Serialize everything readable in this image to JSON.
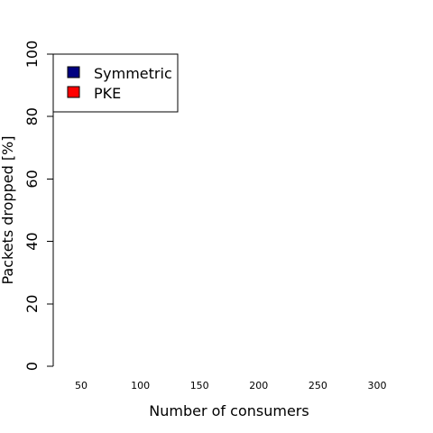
{
  "chart_data": {
    "type": "bar",
    "xlabel": "Number of consumers",
    "ylabel": "Packets dropped [%]",
    "categories": [
      "50",
      "100",
      "150",
      "200",
      "250",
      "300"
    ],
    "yticks": [
      "0",
      "20",
      "40",
      "60",
      "80",
      "100"
    ],
    "ylim": [
      0,
      100
    ],
    "grid": false,
    "legend_position": "top-left",
    "series": [
      {
        "name": "Symmetric",
        "color": "#000080",
        "values": [
          0,
          0,
          0,
          0,
          0,
          0
        ]
      },
      {
        "name": "PKE",
        "color": "#ff0000",
        "values": [
          0,
          0,
          0,
          0,
          0,
          0
        ]
      }
    ]
  }
}
